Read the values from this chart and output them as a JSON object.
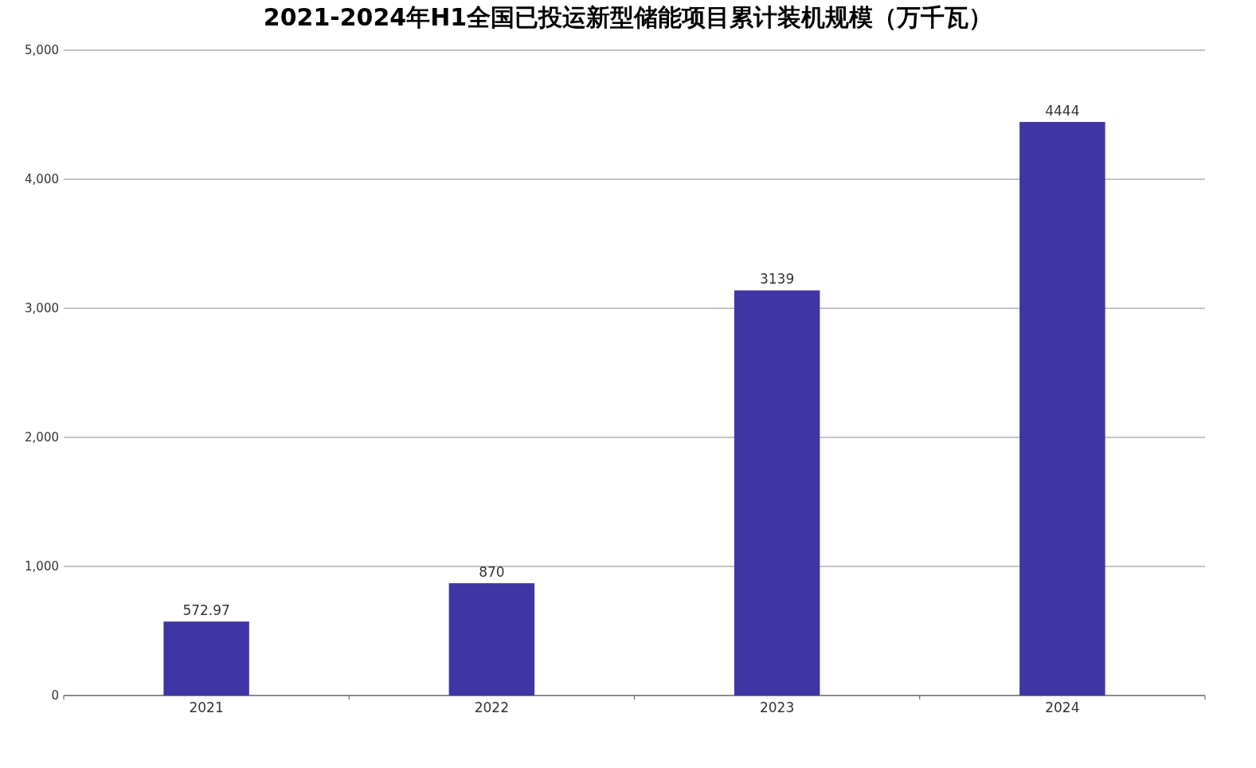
{
  "chart_data": {
    "type": "bar",
    "title": "2021-2024年H1全国已投运新型储能项目累计装机规模（万千瓦）",
    "categories": [
      "2021",
      "2022",
      "2023",
      "2024"
    ],
    "values": [
      572.97,
      870,
      3139,
      4444
    ],
    "color": "#3f35a5",
    "ylim": [
      0,
      5000
    ],
    "yticks": [
      0,
      {
        "value": 1000,
        "label": "1,000"
      },
      {
        "value": 2000,
        "label": "2,000"
      },
      {
        "value": 3000,
        "label": "3,000"
      },
      {
        "value": 4000,
        "label": "4,000"
      },
      {
        "value": 5000,
        "label": "5,000"
      }
    ],
    "grid": "y",
    "data_labels": true
  }
}
